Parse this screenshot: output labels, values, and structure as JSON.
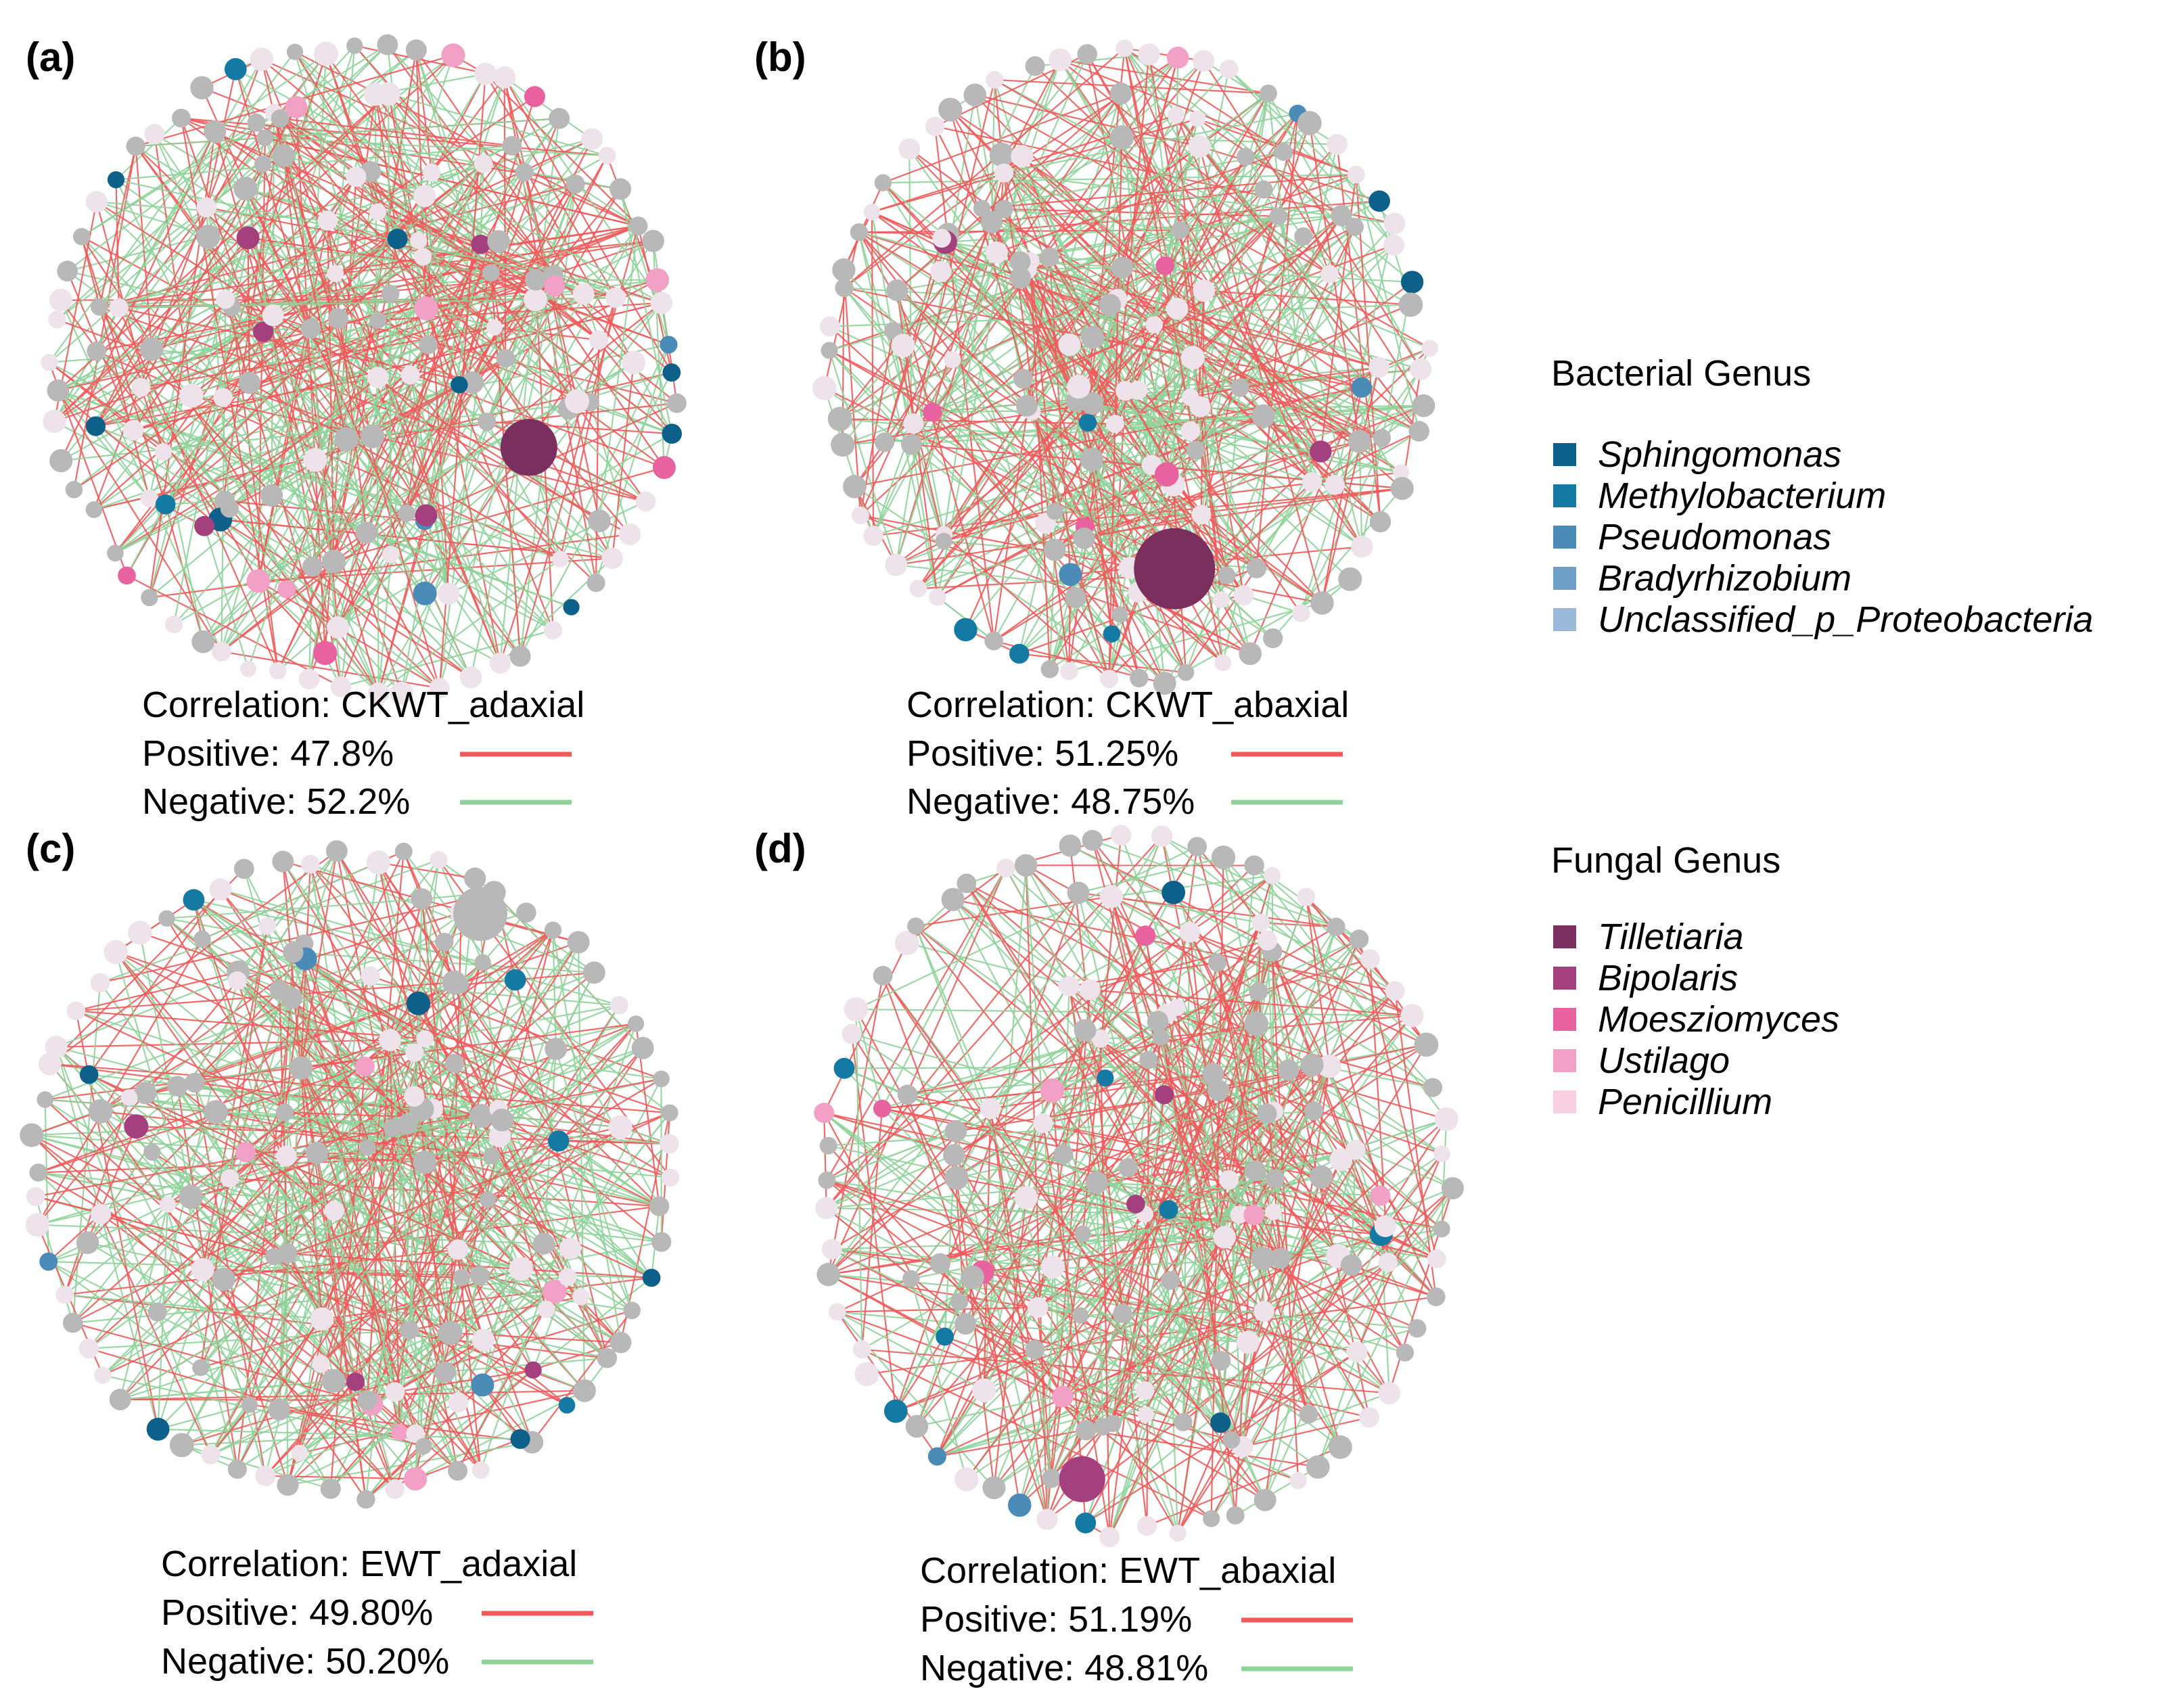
{
  "panels": [
    {
      "label": "(a)",
      "correlation": "Correlation: CKWT_adaxial",
      "positive": "Positive: 47.8%",
      "negative": "Negative: 52.2%"
    },
    {
      "label": "(b)",
      "correlation": "Correlation: CKWT_abaxial",
      "positive": "Positive: 51.25%",
      "negative": "Negative: 48.75%"
    },
    {
      "label": "(c)",
      "correlation": "Correlation: EWT_adaxial",
      "positive": "Positive: 49.80%",
      "negative": "Negative: 50.20%"
    },
    {
      "label": "(d)",
      "correlation": "Correlation: EWT_abaxial",
      "positive": "Positive: 51.19%",
      "negative": "Negative: 48.81%"
    }
  ],
  "legend": {
    "bacterial": {
      "title": "Bacterial Genus",
      "items": [
        {
          "name": "Sphingomonas",
          "color": "#0d6089"
        },
        {
          "name": "Methylobacterium",
          "color": "#1479a3"
        },
        {
          "name": "Pseudomonas",
          "color": "#4a8bb7"
        },
        {
          "name": "Bradyrhizobium",
          "color": "#6f9ec6"
        },
        {
          "name": "Unclassified_p_Proteobacteria",
          "color": "#9ab9d8"
        }
      ]
    },
    "fungal": {
      "title": "Fungal Genus",
      "items": [
        {
          "name": "Tilletiaria",
          "color": "#7a2f5e"
        },
        {
          "name": "Bipolaris",
          "color": "#a5407f"
        },
        {
          "name": "Moesziomyces",
          "color": "#e8629f"
        },
        {
          "name": "Ustilago",
          "color": "#f2a0c6"
        },
        {
          "name": "Penicillium",
          "color": "#f8d0e2"
        }
      ]
    }
  },
  "colors": {
    "positive_edge": "#f05a5a",
    "negative_edge": "#8fd39a",
    "other_node": "#b8b8b8",
    "pale_node": "#efe3eb"
  }
}
